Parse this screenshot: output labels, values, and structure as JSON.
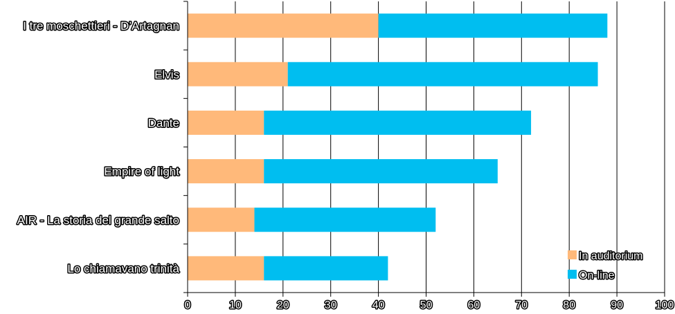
{
  "chart_data": {
    "type": "bar",
    "orientation": "horizontal",
    "stacked": true,
    "categories": [
      "I tre moschettieri - D’Artagnan",
      "Elvis",
      "Dante",
      "Empire of light",
      "AIR - La storia del grande salto",
      "Lo chiamavano trinità"
    ],
    "series": [
      {
        "name": "In auditorium",
        "color": "#ffb97a",
        "values": [
          40,
          21,
          16,
          16,
          14,
          16
        ]
      },
      {
        "name": "On-line",
        "color": "#00bef0",
        "values": [
          48,
          65,
          56,
          49,
          38,
          26
        ]
      }
    ],
    "xlim": [
      0,
      100
    ],
    "xticks": [
      "0",
      "10",
      "20",
      "30",
      "40",
      "50",
      "60",
      "70",
      "80",
      "90",
      "100"
    ],
    "grid": "vertical",
    "legend_position": "bottom-right",
    "title": "",
    "xlabel": "",
    "ylabel": ""
  }
}
